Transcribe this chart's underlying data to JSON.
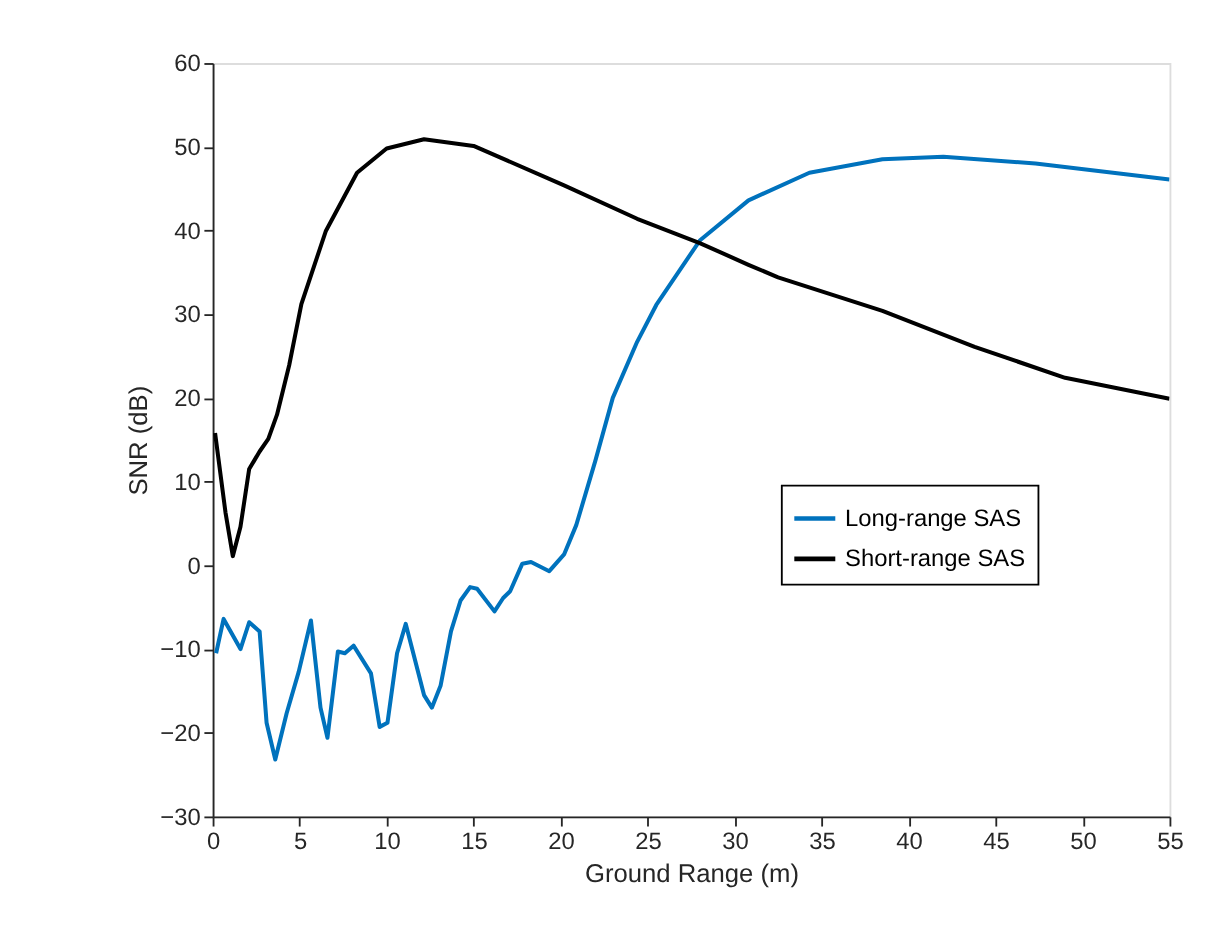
{
  "chart_data": {
    "type": "line",
    "xlabel": "Ground Range (m)",
    "ylabel": "SNR (dB)",
    "xlim": [
      0,
      55
    ],
    "xticks": [
      0,
      5,
      10,
      15,
      20,
      25,
      30,
      35,
      40,
      45,
      50,
      55
    ],
    "ylim": [
      -30,
      60
    ],
    "yticks": [
      -30,
      -20,
      -10,
      0,
      10,
      20,
      30,
      40,
      50,
      60
    ],
    "grid": false,
    "legend": "right",
    "line_style": "solid",
    "marker": "none",
    "series": [
      {
        "name": "Long-range SAS",
        "color": "#0072bd",
        "x": [
          0.2,
          0.63,
          1.6,
          2.1,
          2.7,
          3.1,
          3.6,
          4.25,
          4.95,
          5.65,
          6.2,
          6.6,
          7.2,
          7.6,
          8.1,
          9.1,
          9.6,
          10.05,
          10.6,
          11.1,
          12.15,
          12.6,
          13.1,
          13.7,
          14.25,
          14.8,
          15.2,
          16.2,
          16.7,
          17.1,
          17.8,
          18.3,
          19.35,
          20.2,
          20.9,
          22,
          23,
          24.4,
          25.5,
          28,
          30.8,
          34.3,
          38.5,
          42,
          47.3,
          55
        ],
        "values": [
          -10.5,
          -6.4,
          -10,
          -6.8,
          -7.9,
          -18.8,
          -23.2,
          -17.7,
          -12.7,
          -6.6,
          -17,
          -20.6,
          -10.3,
          -10.5,
          -9.6,
          -12.9,
          -19.3,
          -18.8,
          -10.5,
          -7,
          -15.5,
          -17,
          -14.4,
          -7.9,
          -4.2,
          -2.6,
          -2.8,
          -5.5,
          -3.9,
          -3.1,
          0.2,
          0.4,
          -0.7,
          1.3,
          4.8,
          12.5,
          20,
          26.7,
          31.1,
          38.8,
          43.6,
          46.9,
          48.5,
          48.8,
          48,
          46.1
        ]
      },
      {
        "name": "Short-range SAS",
        "color": "#000000",
        "x": [
          0.14,
          0.74,
          1.16,
          1.6,
          2.1,
          2.7,
          3.2,
          3.7,
          4.4,
          5.1,
          6.5,
          8.3,
          10,
          12.15,
          15,
          20.2,
          24.4,
          28,
          30.8,
          32.5,
          38.5,
          43.8,
          49,
          55
        ],
        "values": [
          15.8,
          6.3,
          1.1,
          4.6,
          11.5,
          13.6,
          15.1,
          18,
          23.9,
          31.2,
          39.9,
          46.9,
          49.8,
          50.9,
          50.1,
          45.4,
          41.4,
          38.5,
          35.9,
          34.4,
          30.4,
          26.1,
          22.4,
          19.9
        ]
      }
    ]
  }
}
